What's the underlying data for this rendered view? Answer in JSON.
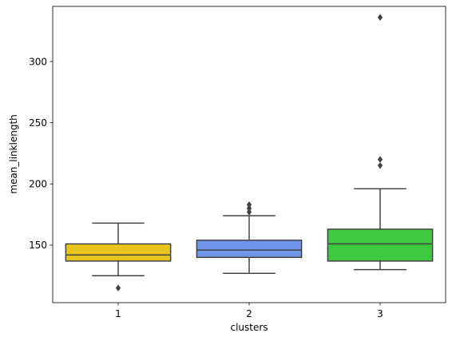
{
  "chart_data": {
    "type": "box",
    "xlabel": "clusters",
    "ylabel": "mean_linklength",
    "categories": [
      "1",
      "2",
      "3"
    ],
    "ylim": [
      103,
      345
    ],
    "yticks": [
      150,
      200,
      250,
      300
    ],
    "grid": false,
    "box_edge_color": "#424242",
    "series": [
      {
        "category": "1",
        "color": "#e8c51e",
        "whisker_low": 125,
        "q1": 137,
        "median": 142,
        "q3": 151,
        "whisker_high": 168,
        "outliers": [
          115
        ]
      },
      {
        "category": "2",
        "color": "#6f96e8",
        "whisker_low": 127,
        "q1": 140,
        "median": 146,
        "q3": 154,
        "whisker_high": 174,
        "outliers": [
          177,
          180,
          183
        ]
      },
      {
        "category": "3",
        "color": "#3fc73f",
        "whisker_low": 130,
        "q1": 137,
        "median": 151,
        "q3": 163,
        "whisker_high": 196,
        "outliers": [
          215,
          220,
          336
        ]
      }
    ]
  }
}
